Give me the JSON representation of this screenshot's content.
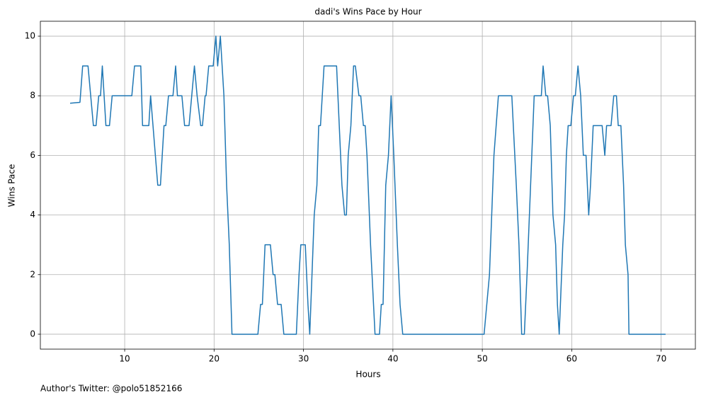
{
  "chart_data": {
    "type": "line",
    "title": "dadi's Wins Pace by Hour",
    "xlabel": "Hours",
    "ylabel": "Wins Pace",
    "annotation": "Author's Twitter: @polo51852166",
    "color": "#1f77b4",
    "grid": true,
    "xlim": [
      0.57,
      73.83
    ],
    "ylim": [
      -0.5,
      10.5
    ],
    "xticks": [
      10,
      20,
      30,
      40,
      50,
      60,
      70
    ],
    "yticks": [
      0,
      2,
      4,
      6,
      8,
      10
    ],
    "x": [
      3.9,
      5.0,
      5.3,
      5.9,
      6.5,
      6.8,
      7.1,
      7.3,
      7.5,
      7.9,
      8.3,
      8.6,
      10.0,
      10.8,
      11.1,
      11.8,
      12.0,
      12.7,
      12.9,
      13.7,
      14.0,
      14.4,
      14.6,
      14.9,
      15.4,
      15.7,
      15.9,
      16.4,
      16.7,
      17.2,
      17.8,
      18.1,
      18.5,
      18.7,
      19.0,
      19.1,
      19.4,
      19.9,
      20.2,
      20.4,
      20.7,
      21.1,
      21.4,
      21.7,
      22.0,
      24.9,
      25.2,
      25.4,
      25.7,
      26.3,
      26.6,
      26.8,
      27.1,
      27.5,
      27.8,
      29.2,
      29.5,
      29.7,
      30.2,
      30.5,
      30.7,
      31.2,
      31.5,
      31.7,
      31.9,
      32.3,
      33.7,
      34.3,
      34.6,
      34.8,
      35.0,
      35.3,
      35.6,
      35.8,
      36.2,
      36.4,
      36.7,
      36.9,
      37.1,
      37.5,
      38.0,
      38.5,
      38.7,
      38.9,
      39.2,
      39.5,
      39.8,
      40.1,
      40.5,
      40.8,
      41.1,
      50.2,
      50.8,
      51.3,
      51.8,
      53.3,
      53.8,
      54.1,
      54.4,
      54.7,
      55.0,
      55.4,
      55.8,
      56.6,
      56.8,
      57.1,
      57.3,
      57.6,
      57.9,
      58.2,
      58.4,
      58.6,
      59.0,
      59.2,
      59.4,
      59.6,
      59.9,
      60.2,
      60.4,
      60.7,
      61.0,
      61.3,
      61.6,
      61.9,
      62.1,
      62.4,
      63.4,
      63.7,
      63.9,
      64.4,
      64.7,
      65.0,
      65.2,
      65.5,
      65.8,
      66.0,
      66.3,
      66.4,
      70.5
    ],
    "values": [
      7.75,
      7.78,
      9,
      9,
      7,
      7,
      8,
      8,
      9,
      7,
      7,
      8,
      8,
      8,
      9,
      9,
      7,
      7,
      8,
      5,
      5,
      7,
      7,
      8,
      8,
      9,
      8,
      8,
      7,
      7,
      9,
      8,
      7,
      7,
      8,
      8,
      9,
      9,
      10,
      9,
      10,
      8,
      5,
      3,
      0,
      0,
      1,
      1,
      3,
      3,
      2,
      2,
      1,
      1,
      0,
      0,
      2,
      3,
      3,
      1,
      0,
      4,
      5,
      7,
      7,
      9,
      9,
      5,
      4,
      4,
      6,
      7,
      9,
      9,
      8,
      8,
      7,
      7,
      6,
      3,
      0,
      0,
      1,
      1,
      5,
      6,
      8,
      6,
      3,
      1,
      0,
      0,
      2,
      6,
      8,
      8,
      5,
      3,
      0,
      0,
      2,
      5,
      8,
      8,
      9,
      8,
      8,
      7,
      4,
      3,
      1,
      0,
      3,
      4,
      6,
      7,
      7,
      8,
      8,
      9,
      8,
      6,
      6,
      4,
      5,
      7,
      7,
      6,
      7,
      7,
      8,
      8,
      7,
      7,
      5,
      3,
      2,
      0,
      0
    ]
  }
}
